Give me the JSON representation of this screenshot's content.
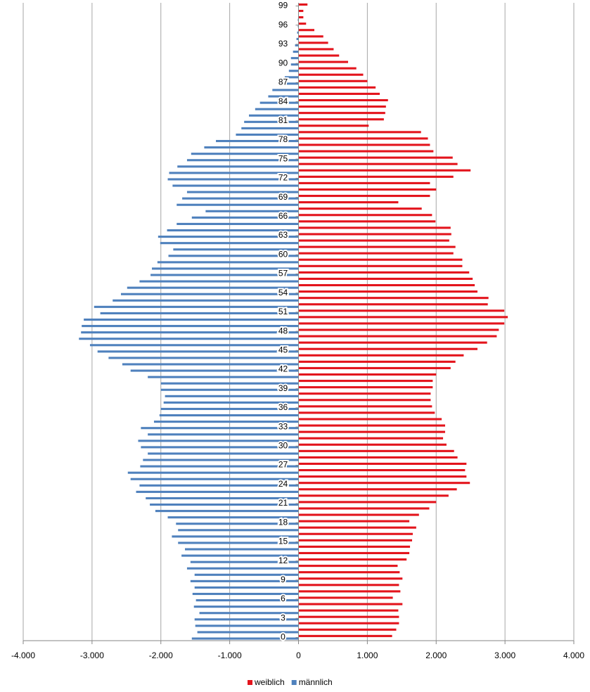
{
  "chart_data": {
    "type": "bar",
    "orientation": "horizontal",
    "categories": [
      "0",
      null,
      null,
      "3",
      null,
      null,
      "6",
      null,
      null,
      "9",
      null,
      null,
      "12",
      null,
      null,
      "15",
      null,
      null,
      "18",
      null,
      null,
      "21",
      null,
      null,
      "24",
      null,
      null,
      "27",
      null,
      null,
      "30",
      null,
      null,
      "33",
      null,
      null,
      "36",
      null,
      null,
      "39",
      null,
      null,
      "42",
      null,
      null,
      "45",
      null,
      null,
      "48",
      null,
      null,
      "51",
      null,
      null,
      "54",
      null,
      null,
      "57",
      null,
      null,
      "60",
      null,
      null,
      "63",
      null,
      null,
      "66",
      null,
      null,
      "69",
      null,
      null,
      "72",
      null,
      null,
      "75",
      null,
      null,
      "78",
      null,
      null,
      "81",
      null,
      null,
      "84",
      null,
      null,
      "87",
      null,
      null,
      "90",
      null,
      null,
      "93",
      null,
      null,
      "96",
      null,
      null,
      "99"
    ],
    "series": [
      {
        "name": "weiblich",
        "color": "#e3141c",
        "values": [
          1360,
          1420,
          1460,
          1460,
          1450,
          1510,
          1370,
          1480,
          1460,
          1510,
          1470,
          1440,
          1570,
          1610,
          1620,
          1650,
          1660,
          1710,
          1610,
          1750,
          1900,
          2000,
          2180,
          2300,
          2490,
          2440,
          2420,
          2440,
          2310,
          2260,
          2150,
          2100,
          2130,
          2130,
          2080,
          1980,
          1940,
          1920,
          1920,
          1950,
          1950,
          2000,
          2210,
          2280,
          2400,
          2600,
          2740,
          2880,
          2910,
          2990,
          3040,
          2990,
          2750,
          2760,
          2600,
          2560,
          2530,
          2480,
          2380,
          2380,
          2250,
          2280,
          2190,
          2220,
          2210,
          1990,
          1940,
          1790,
          1450,
          1910,
          2000,
          1910,
          2250,
          2500,
          2310,
          2240,
          1960,
          1910,
          1880,
          1780,
          1020,
          1240,
          1260,
          1270,
          1300,
          1180,
          1120,
          1000,
          940,
          840,
          720,
          590,
          510,
          430,
          360,
          230,
          110,
          70,
          70,
          130
        ]
      },
      {
        "name": "männlich",
        "color": "#4f81bd",
        "values": [
          -1550,
          -1470,
          -1500,
          -1510,
          -1440,
          -1520,
          -1490,
          -1540,
          -1510,
          -1570,
          -1510,
          -1620,
          -1570,
          -1700,
          -1650,
          -1750,
          -1840,
          -1750,
          -1780,
          -1900,
          -2080,
          -2160,
          -2220,
          -2360,
          -2310,
          -2440,
          -2480,
          -2300,
          -2260,
          -2190,
          -2290,
          -2330,
          -2190,
          -2290,
          -2100,
          -2020,
          -2000,
          -1960,
          -1940,
          -2000,
          -2000,
          -2190,
          -2440,
          -2560,
          -2760,
          -2920,
          -3030,
          -3190,
          -3160,
          -3150,
          -3120,
          -2880,
          -2970,
          -2700,
          -2580,
          -2490,
          -2310,
          -2150,
          -2130,
          -2050,
          -1890,
          -1820,
          -2010,
          -2040,
          -1910,
          -1770,
          -1550,
          -1350,
          -1770,
          -1690,
          -1620,
          -1830,
          -1900,
          -1880,
          -1760,
          -1620,
          -1560,
          -1370,
          -1200,
          -910,
          -830,
          -790,
          -720,
          -630,
          -560,
          -440,
          -380,
          -300,
          -200,
          -140,
          -110,
          -110,
          -80,
          -50,
          -30,
          -20,
          -10,
          -10,
          -5,
          -5
        ]
      }
    ],
    "xlim": [
      -4000,
      4000
    ],
    "xticks": [
      {
        "value": -4000,
        "label": "-4.000"
      },
      {
        "value": -3000,
        "label": "-3.000"
      },
      {
        "value": -2000,
        "label": "-2.000"
      },
      {
        "value": -1000,
        "label": "-1.000"
      },
      0,
      {
        "value": 1000,
        "label": "1.000"
      },
      {
        "value": 2000,
        "label": "2.000"
      },
      {
        "value": 3000,
        "label": "3.000"
      },
      {
        "value": 4000,
        "label": "4.000"
      }
    ],
    "grid": true,
    "legend": "bottom"
  }
}
